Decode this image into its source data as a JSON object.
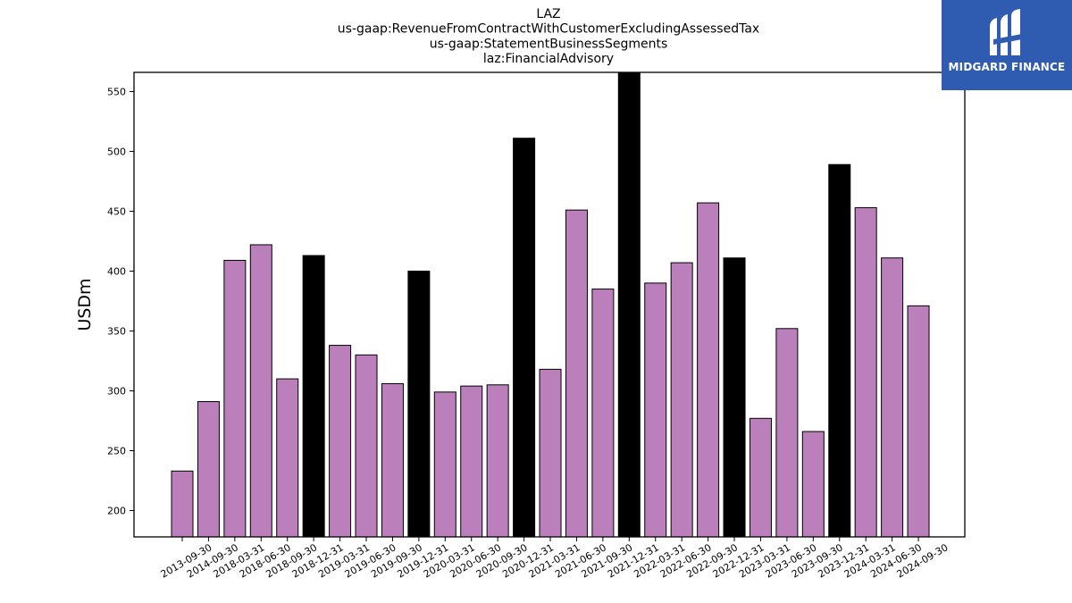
{
  "brand": {
    "logo_text": "MIDGARD FINANCE",
    "color": "#2f5cb0"
  },
  "chart_data": {
    "type": "bar",
    "title_lines": [
      "LAZ",
      "us-gaap:RevenueFromContractWithCustomerExcludingAssessedTax",
      "us-gaap:StatementBusinessSegments",
      "laz:FinancialAdvisory"
    ],
    "ylabel": "USDm",
    "xlabel": "",
    "ylim": [
      178,
      566
    ],
    "yticks": [
      200,
      250,
      300,
      350,
      400,
      450,
      500,
      550
    ],
    "grid": false,
    "colors": {
      "quarter": "#bb7fbc",
      "annual": "#000000",
      "edge": "#000000"
    },
    "categories": [
      "2013-09-30",
      "2014-09-30",
      "2018-03-31",
      "2018-06-30",
      "2018-09-30",
      "2018-12-31",
      "2019-03-31",
      "2019-06-30",
      "2019-09-30",
      "2019-12-31",
      "2020-03-31",
      "2020-06-30",
      "2020-09-30",
      "2020-12-31",
      "2021-03-31",
      "2021-06-30",
      "2021-09-30",
      "2021-12-31",
      "2022-03-31",
      "2022-06-30",
      "2022-09-30",
      "2022-12-31",
      "2023-03-31",
      "2023-06-30",
      "2023-09-30",
      "2023-12-31",
      "2024-03-31",
      "2024-06-30",
      "2024-09-30"
    ],
    "values": [
      233,
      291,
      409,
      422,
      310,
      413,
      338,
      330,
      306,
      400,
      299,
      304,
      305,
      511,
      318,
      451,
      385,
      567,
      390,
      407,
      457,
      411,
      277,
      352,
      266,
      489,
      453,
      411,
      371
    ],
    "highlight": [
      false,
      false,
      false,
      false,
      false,
      true,
      false,
      false,
      false,
      true,
      false,
      false,
      false,
      true,
      false,
      false,
      false,
      true,
      false,
      false,
      false,
      true,
      false,
      false,
      false,
      true,
      false,
      false,
      false
    ]
  }
}
